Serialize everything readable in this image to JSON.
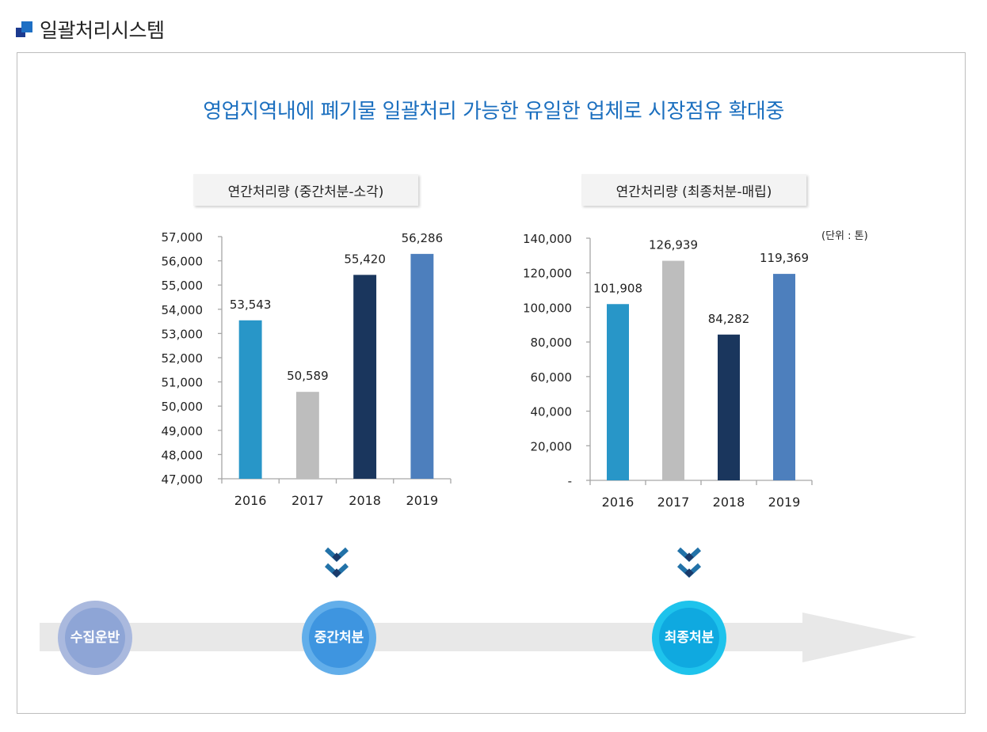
{
  "header": {
    "title": "일괄처리시스템",
    "icon": "logo-squares-icon"
  },
  "headline": "영업지역내에 폐기물 일괄처리 가능한 유일한 업체로 시장점유 확대중",
  "unit_label": "(단위 : 톤)",
  "colors": {
    "accent": "#1b6fbf",
    "bar_2016": "#2896c8",
    "bar_2017": "#bdbdbd",
    "bar_2018": "#1a365d",
    "bar_2019": "#4d7fbd"
  },
  "chart_data": [
    {
      "type": "bar",
      "title": "연간처리량 (중간처분-소각)",
      "categories": [
        "2016",
        "2017",
        "2018",
        "2019"
      ],
      "values": [
        53543,
        50589,
        55420,
        56286
      ],
      "value_labels": [
        "53,543",
        "50,589",
        "55,420",
        "56,286"
      ],
      "ylim": [
        47000,
        57000
      ],
      "yticks": [
        47000,
        48000,
        49000,
        50000,
        51000,
        52000,
        53000,
        54000,
        55000,
        56000,
        57000
      ],
      "ytick_labels": [
        "47,000",
        "48,000",
        "49,000",
        "50,000",
        "51,000",
        "52,000",
        "53,000",
        "54,000",
        "55,000",
        "56,000",
        "57,000"
      ],
      "xlabel": "",
      "ylabel": "",
      "grid": false,
      "legend": "none"
    },
    {
      "type": "bar",
      "title": "연간처리량 (최종처분-매립)",
      "categories": [
        "2016",
        "2017",
        "2018",
        "2019"
      ],
      "values": [
        101908,
        126939,
        84282,
        119369
      ],
      "value_labels": [
        "101,908",
        "126,939",
        "84,282",
        "119,369"
      ],
      "ylim": [
        0,
        140000
      ],
      "yticks": [
        0,
        20000,
        40000,
        60000,
        80000,
        100000,
        120000,
        140000
      ],
      "ytick_labels": [
        "-",
        "20,000",
        "40,000",
        "60,000",
        "80,000",
        "100,000",
        "120,000",
        "140,000"
      ],
      "xlabel": "",
      "ylabel": "",
      "grid": false,
      "legend": "none",
      "unit": "(단위 : 톤)"
    }
  ],
  "flow": {
    "stages": [
      {
        "line1": "수집",
        "line2": "운반",
        "outer": "#aab9de",
        "inner": "#8ea5d6"
      },
      {
        "line1": "중간",
        "line2": "처분",
        "outer": "#62aeea",
        "inner": "#3e95e0"
      },
      {
        "line1": "최종",
        "line2": "처분",
        "outer": "#1ec3ec",
        "inner": "#0fa9e0"
      }
    ],
    "arrow_color": "#e8e8e8",
    "chevron_color": "#2272a8",
    "chevron_dark": "#1a3a6a"
  }
}
